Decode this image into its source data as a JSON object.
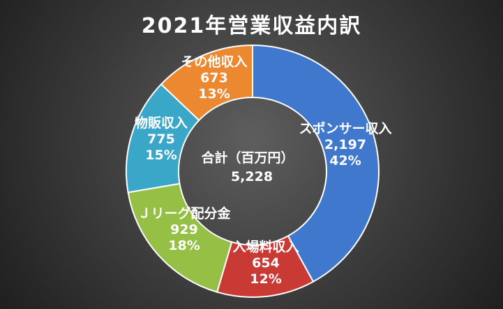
{
  "chart_data": {
    "type": "pie",
    "title": "2021年営業収益内訳",
    "center_label": "合計（百万円）",
    "center_value": "5,228",
    "slices": [
      {
        "label": "スポンサー収入",
        "value": 2197,
        "value_text": "2,197",
        "percent": "42%",
        "color": "#3f78cc"
      },
      {
        "label": "入場料収入",
        "value": 654,
        "value_text": "654",
        "percent": "12%",
        "color": "#c93a34"
      },
      {
        "label": "Ｊリーグ配分金",
        "value": 929,
        "value_text": "929",
        "percent": "18%",
        "color": "#95bf45"
      },
      {
        "label": "物販収入",
        "value": 775,
        "value_text": "775",
        "percent": "15%",
        "color": "#3aa7c9"
      },
      {
        "label": "その他収入",
        "value": 673,
        "value_text": "673",
        "percent": "13%",
        "color": "#ec8830"
      }
    ]
  }
}
